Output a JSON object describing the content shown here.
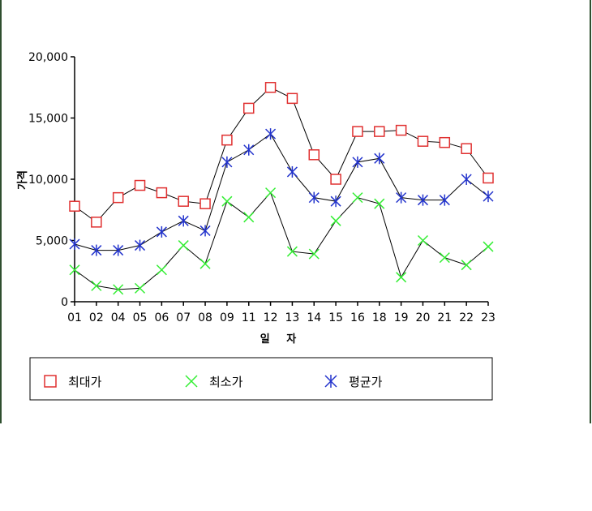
{
  "chart_data": {
    "type": "line",
    "xlabel": "일 자",
    "ylabel": "가격",
    "ylim": [
      0,
      20000
    ],
    "yticks": [
      "0",
      "5,000",
      "10,000",
      "15,000",
      "20,000"
    ],
    "categories": [
      "01",
      "02",
      "04",
      "05",
      "06",
      "07",
      "08",
      "09",
      "11",
      "12",
      "13",
      "14",
      "15",
      "16",
      "18",
      "19",
      "20",
      "21",
      "22",
      "23"
    ],
    "series": [
      {
        "name": "최대가",
        "marker": "square",
        "color": "#e03030",
        "values": [
          7800,
          6500,
          8500,
          9500,
          8900,
          8200,
          8000,
          13200,
          15800,
          17500,
          16600,
          12000,
          10000,
          13900,
          13900,
          14000,
          13100,
          13000,
          12500,
          10100
        ]
      },
      {
        "name": "최소가",
        "marker": "x",
        "color": "#33ee33",
        "values": [
          2600,
          1300,
          1000,
          1100,
          2600,
          4600,
          3100,
          8200,
          6900,
          8900,
          4100,
          3900,
          6600,
          8500,
          8000,
          2000,
          5000,
          3600,
          3000,
          4500
        ]
      },
      {
        "name": "평균가",
        "marker": "asterisk",
        "color": "#2233cc",
        "values": [
          4700,
          4200,
          4200,
          4600,
          5700,
          6600,
          5800,
          11400,
          12400,
          13700,
          10600,
          8500,
          8200,
          11400,
          11700,
          8500,
          8300,
          8300,
          10000,
          8600
        ]
      }
    ],
    "legend": "bottom",
    "grid": false
  }
}
